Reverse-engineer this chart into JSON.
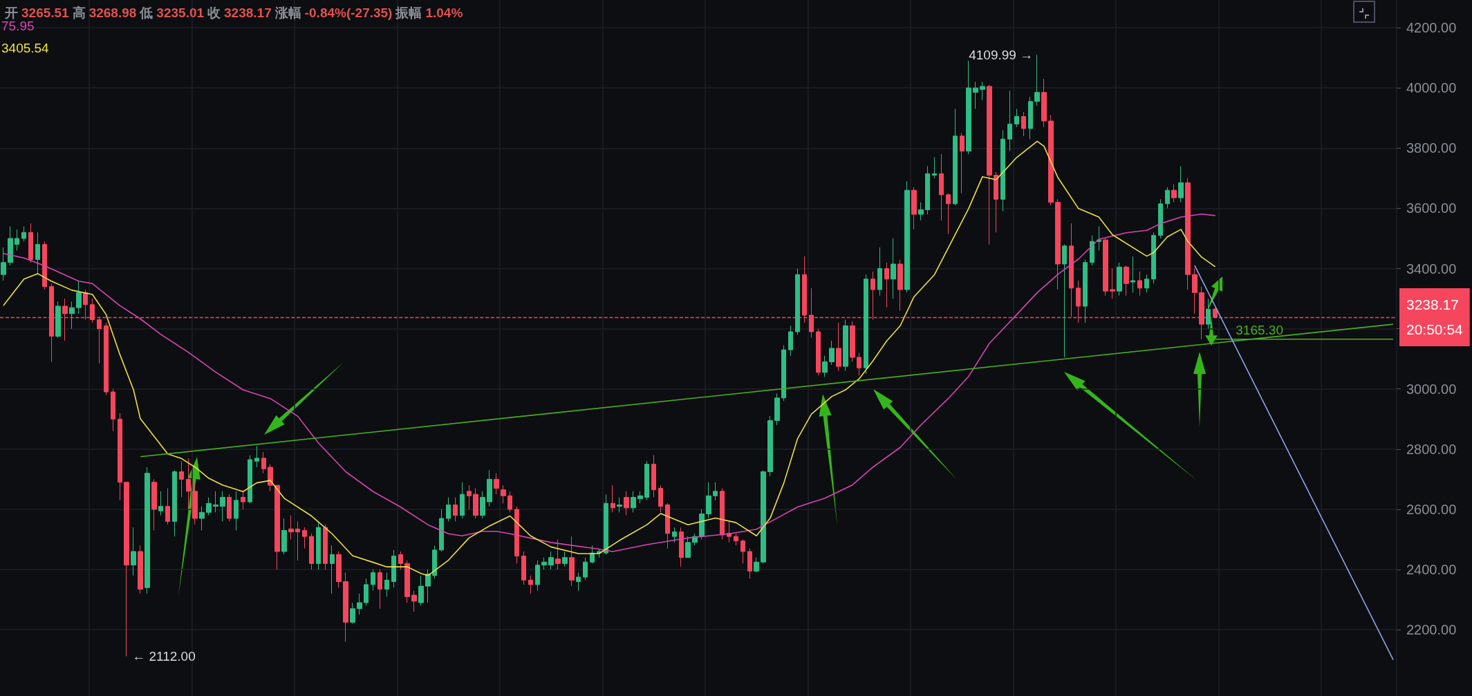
{
  "chart_data": {
    "type": "candlestick",
    "title": "开 3265.51 高 3268.98 低 3235.01 收 3238.17 涨幅 -0.84%(-27.35) 振幅 1.04%",
    "categories": [
      null,
      null,
      null,
      null,
      null,
      null,
      null,
      null,
      null,
      null,
      null,
      null,
      null,
      null,
      null,
      null,
      null,
      null,
      null,
      null,
      null,
      null,
      null,
      null,
      null,
      null,
      null,
      null,
      null,
      null,
      null,
      null,
      null,
      null,
      null,
      null,
      null,
      null,
      null,
      null,
      null,
      null,
      null,
      null,
      null,
      null,
      null,
      null,
      null,
      null,
      null,
      null,
      null,
      null,
      null,
      null,
      null,
      null,
      null,
      null,
      null,
      null,
      null,
      null,
      null,
      null,
      null,
      null,
      null,
      null,
      null,
      null,
      null,
      null,
      null,
      null,
      null,
      null,
      null,
      null,
      null,
      null,
      null,
      null,
      null,
      null,
      null,
      null,
      null,
      null,
      null,
      null,
      null,
      null,
      null,
      null,
      null,
      null,
      null,
      null,
      null,
      null,
      null,
      null,
      null,
      null,
      null,
      null,
      null,
      null,
      null,
      null,
      null,
      null,
      null,
      null,
      null,
      null,
      null,
      null,
      null,
      null,
      null,
      null,
      null,
      null,
      null,
      null,
      null,
      null,
      null,
      null,
      null,
      null,
      null,
      null,
      null,
      null,
      null,
      null,
      null,
      null,
      null,
      null,
      null,
      null,
      null,
      null,
      null,
      null,
      null,
      null,
      null,
      null,
      null,
      null,
      null,
      null,
      null,
      null,
      null,
      null,
      null,
      null,
      null,
      null,
      null,
      null,
      null,
      null,
      null,
      null,
      null,
      null,
      null,
      null,
      null,
      null,
      null,
      null,
      null,
      null,
      null,
      null,
      null,
      null,
      null,
      null,
      null,
      null,
      null,
      null,
      null,
      null,
      null,
      null,
      null,
      null,
      null,
      null,
      null,
      null,
      null,
      null
    ],
    "colors": [
      "#2ebd85",
      "#2ebd85",
      "#2ebd85",
      "#2ebd85",
      "#f6465d",
      "#2ebd85",
      "#f6465d",
      "#f6465d",
      "#2ebd85",
      "#f6465d",
      "#2ebd85",
      "#2ebd85",
      "#f6465d",
      "#f6465d",
      "#f6465d",
      "#f6465d",
      "#f6465d",
      "#f6465d",
      "#f6465d",
      "#2ebd85",
      "#f6465d",
      "#2ebd85",
      "#f6465d",
      "#2ebd85",
      "#f6465d",
      "#2ebd85",
      "#f6465d",
      "#f6465d",
      "#f6465d",
      "#2ebd85",
      "#2ebd85",
      "#2ebd85",
      "#2ebd85",
      "#f6465d",
      "#2ebd85",
      "#f6465d",
      "#2ebd85",
      "#2ebd85",
      "#f6465d",
      "#f6465d",
      "#f6465d",
      "#2ebd85",
      "#f6465d",
      "#f6465d",
      "#f6465d",
      "#f6465d",
      "#2ebd85",
      "#f6465d",
      "#2ebd85",
      "#f6465d",
      "#f6465d",
      "#2ebd85",
      "#2ebd85",
      "#2ebd85",
      "#2ebd85",
      "#f6465d",
      "#2ebd85",
      "#2ebd85",
      "#f6465d",
      "#f6465d",
      "#f6465d",
      "#2ebd85",
      "#2ebd85",
      "#2ebd85",
      "#2ebd85",
      "#2ebd85",
      "#f6465d",
      "#2ebd85",
      "#f6465d",
      "#f6465d",
      "#2ebd85",
      "#2ebd85",
      "#f6465d",
      "#f6465d",
      "#f6465d",
      "#f6465d",
      "#f6465d",
      "#f6465d",
      "#2ebd85",
      "#2ebd85",
      "#2ebd85",
      "#f6465d",
      "#2ebd85",
      "#f6465d",
      "#2ebd85",
      "#2ebd85",
      "#2ebd85",
      "#2ebd85",
      "#2ebd85",
      "#f6465d",
      "#2ebd85",
      "#f6465d",
      "#2ebd85",
      "#2ebd85",
      "#2ebd85",
      "#f6465d",
      "#f6465d",
      "#f6465d",
      "#2ebd85",
      "#f6465d",
      "#2ebd85",
      "#2ebd85",
      "#2ebd85",
      "#2ebd85",
      "#2ebd85",
      "#f6465d",
      "#f6465d",
      "#f6465d",
      "#f6465d",
      "#f6465d",
      "#2ebd85",
      "#2ebd85",
      "#2ebd85",
      "#2ebd85",
      "#2ebd85",
      "#2ebd85",
      "#2ebd85",
      "#f6465d",
      "#f6465d",
      "#f6465d",
      "#2ebd85",
      "#2ebd85",
      "#f6465d",
      "#2ebd85",
      "#f6465d",
      "#f6465d",
      "#2ebd85",
      "#f6465d",
      "#2ebd85",
      "#f6465d",
      "#2ebd85",
      "#f6465d",
      "#2ebd85",
      "#f6465d",
      "#2ebd85",
      "#2ebd85",
      "#2ebd85",
      "#f6465d",
      "#f6465d",
      "#2ebd85",
      "#f6465d",
      "#2ebd85",
      "#2ebd85",
      "#2ebd85",
      "#f6465d",
      "#f6465d",
      "#2ebd85",
      "#2ebd85",
      "#2ebd85",
      "#f6465d",
      "#2ebd85",
      "#2ebd85",
      "#f6465d",
      "#f6465d",
      "#f6465d",
      "#2ebd85",
      "#f6465d",
      "#f6465d",
      "#2ebd85",
      "#2ebd85",
      "#2ebd85",
      "#f6465d",
      "#f6465d",
      "#2ebd85",
      "#f6465d",
      "#2ebd85",
      "#f6465d",
      "#2ebd85",
      "#2ebd85",
      "#2ebd85",
      "#2ebd85",
      "#f6465d",
      "#2ebd85",
      "#f6465d",
      "#f6465d",
      "#f6465d",
      "#2ebd85",
      "#f6465d",
      null,
      null,
      null,
      null,
      null,
      null,
      null,
      null,
      null,
      null,
      null,
      null,
      null,
      null,
      null,
      null,
      null,
      null,
      null,
      null,
      null,
      null,
      null,
      null,
      null,
      null
    ],
    "ohlc": [
      [
        3380,
        3470,
        3360,
        3420
      ],
      [
        3420,
        3540,
        3410,
        3500
      ],
      [
        3480,
        3530,
        3460,
        3500
      ],
      [
        3500,
        3540,
        3490,
        3520
      ],
      [
        3520,
        3550,
        3420,
        3430
      ],
      [
        3430,
        3520,
        3380,
        3480
      ],
      [
        3480,
        3490,
        3330,
        3340
      ],
      [
        3340,
        3350,
        3090,
        3175
      ],
      [
        3175,
        3290,
        3170,
        3275
      ],
      [
        3275,
        3300,
        3160,
        3250
      ],
      [
        3250,
        3290,
        3200,
        3270
      ],
      [
        3270,
        3360,
        3250,
        3320
      ],
      [
        3320,
        3330,
        3230,
        3280
      ],
      [
        3280,
        3300,
        3220,
        3230
      ],
      [
        3230,
        3240,
        3085,
        3200
      ],
      [
        3210,
        3220,
        2980,
        2990
      ],
      [
        2990,
        3000,
        2860,
        2900
      ],
      [
        2900,
        2920,
        2630,
        2690
      ],
      [
        2690,
        2690,
        2112,
        2415
      ],
      [
        2415,
        2540,
        2380,
        2460
      ],
      [
        2460,
        2480,
        2320,
        2335
      ],
      [
        2340,
        2740,
        2320,
        2720
      ],
      [
        2690,
        2700,
        2530,
        2600
      ],
      [
        2595,
        2660,
        2580,
        2610
      ],
      [
        2610,
        2670,
        2550,
        2560
      ],
      [
        2560,
        2730,
        2510,
        2725
      ],
      [
        2725,
        2760,
        2640,
        2700
      ],
      [
        2700,
        2770,
        2600,
        2660
      ],
      [
        2660,
        2690,
        2550,
        2570
      ],
      [
        2570,
        2610,
        2530,
        2590
      ],
      [
        2590,
        2640,
        2580,
        2620
      ],
      [
        2610,
        2660,
        2590,
        2615
      ],
      [
        2610,
        2660,
        2560,
        2640
      ],
      [
        2640,
        2650,
        2560,
        2570
      ],
      [
        2570,
        2660,
        2530,
        2630
      ],
      [
        2640,
        2660,
        2600,
        2625
      ],
      [
        2625,
        2780,
        2620,
        2765
      ],
      [
        2760,
        2810,
        2740,
        2770
      ],
      [
        2770,
        2790,
        2720,
        2735
      ],
      [
        2740,
        2750,
        2660,
        2680
      ],
      [
        2680,
        2680,
        2400,
        2460
      ],
      [
        2460,
        2570,
        2450,
        2530
      ],
      [
        2535,
        2580,
        2500,
        2525
      ],
      [
        2535,
        2560,
        2430,
        2525
      ],
      [
        2530,
        2540,
        2470,
        2510
      ],
      [
        2510,
        2520,
        2400,
        2420
      ],
      [
        2420,
        2560,
        2400,
        2540
      ],
      [
        2540,
        2550,
        2400,
        2420
      ],
      [
        2420,
        2480,
        2320,
        2450
      ],
      [
        2450,
        2460,
        2340,
        2360
      ],
      [
        2360,
        2390,
        2160,
        2225
      ],
      [
        2225,
        2290,
        2220,
        2270
      ],
      [
        2270,
        2320,
        2250,
        2290
      ],
      [
        2290,
        2370,
        2280,
        2350
      ],
      [
        2350,
        2400,
        2330,
        2390
      ],
      [
        2390,
        2400,
        2270,
        2335
      ],
      [
        2335,
        2390,
        2310,
        2365
      ],
      [
        2360,
        2465,
        2340,
        2445
      ],
      [
        2450,
        2460,
        2400,
        2420
      ],
      [
        2420,
        2430,
        2290,
        2310
      ],
      [
        2315,
        2330,
        2260,
        2295
      ],
      [
        2290,
        2380,
        2280,
        2345
      ],
      [
        2345,
        2400,
        2290,
        2385
      ],
      [
        2380,
        2480,
        2370,
        2465
      ],
      [
        2465,
        2600,
        2460,
        2570
      ],
      [
        2570,
        2640,
        2560,
        2615
      ],
      [
        2615,
        2640,
        2560,
        2580
      ],
      [
        2580,
        2690,
        2570,
        2650
      ],
      [
        2660,
        2680,
        2600,
        2645
      ],
      [
        2650,
        2670,
        2570,
        2580
      ],
      [
        2580,
        2660,
        2570,
        2640
      ],
      [
        2625,
        2730,
        2610,
        2700
      ],
      [
        2700,
        2720,
        2650,
        2670
      ],
      [
        2665,
        2680,
        2620,
        2645
      ],
      [
        2645,
        2660,
        2590,
        2600
      ],
      [
        2600,
        2610,
        2420,
        2445
      ],
      [
        2445,
        2460,
        2350,
        2365
      ],
      [
        2365,
        2380,
        2320,
        2350
      ],
      [
        2350,
        2430,
        2330,
        2415
      ],
      [
        2415,
        2440,
        2400,
        2425
      ],
      [
        2415,
        2460,
        2400,
        2440
      ],
      [
        2435,
        2500,
        2400,
        2420
      ],
      [
        2420,
        2460,
        2410,
        2440
      ],
      [
        2440,
        2510,
        2345,
        2365
      ],
      [
        2360,
        2390,
        2330,
        2375
      ],
      [
        2375,
        2440,
        2365,
        2425
      ],
      [
        2425,
        2480,
        2420,
        2455
      ],
      [
        2455,
        2470,
        2440,
        2460
      ],
      [
        2455,
        2650,
        2450,
        2620
      ],
      [
        2620,
        2680,
        2590,
        2605
      ],
      [
        2610,
        2640,
        2590,
        2615
      ],
      [
        2640,
        2660,
        2580,
        2605
      ],
      [
        2605,
        2660,
        2590,
        2640
      ],
      [
        2635,
        2660,
        2620,
        2645
      ],
      [
        2640,
        2760,
        2630,
        2750
      ],
      [
        2750,
        2780,
        2640,
        2665
      ],
      [
        2670,
        2680,
        2590,
        2610
      ],
      [
        2615,
        2620,
        2470,
        2520
      ],
      [
        2510,
        2540,
        2490,
        2525
      ],
      [
        2525,
        2540,
        2410,
        2440
      ],
      [
        2440,
        2510,
        2440,
        2490
      ],
      [
        2490,
        2520,
        2480,
        2510
      ],
      [
        2510,
        2600,
        2500,
        2585
      ],
      [
        2585,
        2690,
        2570,
        2645
      ],
      [
        2645,
        2690,
        2630,
        2660
      ],
      [
        2660,
        2670,
        2500,
        2515
      ],
      [
        2520,
        2560,
        2490,
        2510
      ],
      [
        2510,
        2520,
        2480,
        2495
      ],
      [
        2495,
        2500,
        2420,
        2460
      ],
      [
        2460,
        2470,
        2370,
        2395
      ],
      [
        2395,
        2440,
        2390,
        2425
      ],
      [
        2425,
        2730,
        2420,
        2725
      ],
      [
        2725,
        2910,
        2710,
        2895
      ],
      [
        2895,
        2985,
        2880,
        2970
      ],
      [
        2970,
        3145,
        2960,
        3130
      ],
      [
        3130,
        3210,
        3110,
        3190
      ],
      [
        3190,
        3400,
        3180,
        3380
      ],
      [
        3380,
        3440,
        3220,
        3245
      ],
      [
        3245,
        3335,
        3170,
        3190
      ],
      [
        3190,
        3200,
        3045,
        3055
      ],
      [
        3055,
        3110,
        3040,
        3090
      ],
      [
        3090,
        3160,
        3080,
        3135
      ],
      [
        3135,
        3220,
        3060,
        3075
      ],
      [
        3075,
        3230,
        3060,
        3210
      ],
      [
        3210,
        3225,
        3090,
        3105
      ],
      [
        3105,
        3120,
        3045,
        3070
      ],
      [
        3070,
        3380,
        3050,
        3365
      ],
      [
        3365,
        3390,
        3230,
        3330
      ],
      [
        3330,
        3470,
        3310,
        3400
      ],
      [
        3400,
        3420,
        3270,
        3365
      ],
      [
        3365,
        3500,
        3300,
        3415
      ],
      [
        3415,
        3430,
        3260,
        3330
      ],
      [
        3330,
        3690,
        3320,
        3660
      ],
      [
        3660,
        3670,
        3530,
        3580
      ],
      [
        3580,
        3620,
        3560,
        3595
      ],
      [
        3595,
        3740,
        3580,
        3715
      ],
      [
        3710,
        3770,
        3700,
        3715
      ],
      [
        3715,
        3780,
        3560,
        3645
      ],
      [
        3645,
        3650,
        3515,
        3615
      ],
      [
        3615,
        3930,
        3610,
        3840
      ],
      [
        3840,
        3850,
        3650,
        3790
      ],
      [
        3790,
        4090,
        3780,
        4000
      ],
      [
        3985,
        4020,
        3930,
        4000
      ],
      [
        3995,
        4020,
        3960,
        4005
      ],
      [
        4005,
        4010,
        3480,
        3710
      ],
      [
        3710,
        3720,
        3520,
        3630
      ],
      [
        3630,
        3860,
        3590,
        3830
      ],
      [
        3830,
        3990,
        3790,
        3880
      ],
      [
        3880,
        3930,
        3870,
        3905
      ],
      [
        3905,
        3920,
        3840,
        3865
      ],
      [
        3865,
        3970,
        3830,
        3955
      ],
      [
        3955,
        4109.99,
        3940,
        3985
      ],
      [
        3985,
        4030,
        3870,
        3890
      ],
      [
        3890,
        3910,
        3610,
        3620
      ],
      [
        3620,
        3630,
        3330,
        3415
      ],
      [
        3415,
        3480,
        3105,
        3475
      ],
      [
        3475,
        3550,
        3240,
        3335
      ],
      [
        3335,
        3360,
        3220,
        3275
      ],
      [
        3275,
        3430,
        3220,
        3420
      ],
      [
        3420,
        3510,
        3410,
        3490
      ],
      [
        3490,
        3540,
        3460,
        3495
      ],
      [
        3495,
        3500,
        3310,
        3325
      ],
      [
        3330,
        3400,
        3300,
        3325
      ],
      [
        3325,
        3420,
        3310,
        3405
      ],
      [
        3405,
        3410,
        3310,
        3350
      ],
      [
        3355,
        3440,
        3320,
        3360
      ],
      [
        3360,
        3390,
        3310,
        3335
      ],
      [
        3335,
        3380,
        3320,
        3365
      ],
      [
        3365,
        3520,
        3350,
        3510
      ],
      [
        3510,
        3630,
        3500,
        3615
      ],
      [
        3615,
        3670,
        3600,
        3660
      ],
      [
        3660,
        3680,
        3620,
        3635
      ],
      [
        3635,
        3740,
        3620,
        3685
      ],
      [
        3685,
        3700,
        3330,
        3380
      ],
      [
        3380,
        3400,
        3250,
        3320
      ],
      [
        3320,
        3340,
        3165,
        3215
      ],
      [
        3215,
        3300,
        3200,
        3265
      ],
      [
        3265.51,
        3268.98,
        3235.01,
        3238.17
      ],
      null,
      null,
      null,
      null,
      null,
      null,
      null,
      null,
      null,
      null,
      null,
      null,
      null,
      null,
      null,
      null,
      null,
      null,
      null,
      null,
      null,
      null,
      null,
      null,
      null,
      null
    ],
    "series": [
      {
        "type": "line",
        "color": "#d946b5",
        "values": [
          3450,
          null,
          null,
          3435,
          null,
          null,
          3409,
          null,
          null,
          null,
          null,
          3358,
          null,
          3350,
          null,
          null,
          null,
          3277,
          null,
          null,
          3233,
          null,
          null,
          3181,
          null,
          null,
          null,
          3122,
          null,
          null,
          null,
          3056,
          null,
          null,
          null,
          2997,
          null,
          null,
          null,
          2968,
          null,
          null,
          null,
          2909,
          null,
          null,
          2821,
          null,
          null,
          null,
          2725,
          null,
          null,
          null,
          2659,
          null,
          null,
          null,
          2608,
          null,
          null,
          null,
          2549,
          null,
          null,
          2519,
          null,
          2512,
          null,
          null,
          2527,
          null,
          2527,
          null,
          2519,
          null,
          null,
          null,
          null,
          null,
          2490,
          null,
          null,
          null,
          null,
          null,
          null,
          2468,
          null,
          2460,
          null,
          null,
          null,
          null,
          2483,
          null,
          null,
          null,
          null,
          null,
          2505,
          null,
          null,
          null,
          null,
          null,
          2519,
          null,
          null,
          null,
          2534,
          null,
          null,
          2571,
          null,
          null,
          2608,
          null,
          null,
          null,
          2637,
          null,
          null,
          null,
          2681,
          null,
          null,
          2740,
          null,
          null,
          null,
          2806,
          null,
          null,
          2880,
          null,
          null,
          null,
          2968,
          null,
          null,
          3042,
          null,
          null,
          3151,
          null,
          null,
          null,
          3247,
          null,
          null,
          3320,
          null,
          null,
          3380,
          null,
          null,
          3431,
          null,
          null,
          3497,
          null,
          null,
          null,
          3519,
          null,
          null,
          3527,
          null,
          3549,
          null,
          null,
          3571,
          null,
          null,
          3581,
          null,
          3576,
          null,
          null,
          null,
          null,
          null,
          null,
          null,
          null,
          null,
          null,
          null,
          null,
          null,
          null,
          null,
          null,
          null,
          null,
          null,
          null,
          null,
          null,
          null,
          null,
          null,
          null
        ]
      },
      {
        "type": "line",
        "color": "#f0e040",
        "values": [
          3277,
          null,
          null,
          3365,
          null,
          3383,
          null,
          3358,
          null,
          null,
          3328,
          null,
          null,
          3314,
          null,
          3247,
          null,
          3115,
          null,
          2997,
          2901,
          2872,
          null,
          null,
          2784,
          null,
          2769,
          null,
          2740,
          null,
          2703,
          null,
          2681,
          null,
          null,
          2659,
          null,
          2688,
          null,
          2696,
          null,
          2637,
          null,
          null,
          null,
          2578,
          null,
          null,
          2519,
          null,
          null,
          2446,
          null,
          null,
          2424,
          null,
          2409,
          null,
          null,
          2409,
          null,
          2387,
          2380,
          null,
          null,
          2431,
          null,
          null,
          2505,
          null,
          null,
          2545,
          null,
          null,
          2578,
          null,
          null,
          2512,
          null,
          null,
          2475,
          null,
          null,
          null,
          2453,
          null,
          null,
          2453,
          null,
          null,
          2497,
          null,
          null,
          null,
          2549,
          null,
          2586,
          null,
          null,
          null,
          2549,
          null,
          null,
          null,
          2571,
          null,
          null,
          2556,
          null,
          null,
          2512,
          null,
          2571,
          null,
          2688,
          null,
          2835,
          null,
          2916,
          null,
          null,
          2975,
          null,
          2997,
          null,
          3034,
          null,
          3093,
          null,
          3159,
          null,
          3210,
          null,
          3306,
          null,
          null,
          3380,
          null,
          3468,
          null,
          null,
          3600,
          null,
          3705,
          null,
          3695,
          null,
          null,
          3769,
          null,
          null,
          3823,
          3806,
          null,
          3703,
          null,
          null,
          3600,
          null,
          null,
          3571,
          null,
          3512,
          null,
          null,
          null,
          null,
          3441,
          3453,
          null,
          3505,
          null,
          3530,
          3490,
          null,
          3438,
          null,
          3406,
          null,
          null,
          null,
          null,
          null,
          null,
          null,
          null,
          null,
          null,
          null,
          null,
          null,
          null,
          null,
          null,
          null,
          null,
          null,
          null,
          null,
          null,
          null,
          null,
          null,
          null
        ]
      },
      {
        "type": "line",
        "color": "#4caf1e",
        "values": [
          null,
          null,
          null,
          null,
          null,
          null,
          null,
          null,
          null,
          null,
          null,
          null,
          null,
          null,
          null,
          null,
          null,
          null,
          null,
          null,
          2775,
          null,
          null,
          null,
          null,
          null,
          null,
          null,
          null,
          null,
          null,
          null,
          null,
          null,
          null,
          null,
          null,
          null,
          null,
          null,
          null,
          null,
          null,
          null,
          null,
          null,
          null,
          null,
          null,
          null,
          null,
          null,
          null,
          null,
          null,
          null,
          null,
          null,
          null,
          null,
          null,
          null,
          null,
          null,
          null,
          null,
          null,
          null,
          null,
          null,
          null,
          null,
          null,
          null,
          null,
          null,
          null,
          null,
          null,
          null,
          null,
          null,
          null,
          null,
          null,
          null,
          null,
          null,
          null,
          null,
          null,
          null,
          null,
          null,
          null,
          null,
          null,
          null,
          null,
          null,
          null,
          null,
          null,
          null,
          null,
          null,
          null,
          null,
          null,
          null,
          null,
          null,
          null,
          null,
          null,
          null,
          null,
          null,
          null,
          null,
          null,
          null,
          null,
          null,
          null,
          null,
          null,
          null,
          null,
          null,
          null,
          null,
          null,
          null,
          null,
          null,
          null,
          null,
          null,
          null,
          null,
          null,
          null,
          null,
          null,
          null,
          null,
          null,
          null,
          null,
          null,
          null,
          null,
          null,
          null,
          null,
          null,
          null,
          null,
          null,
          null,
          null,
          null,
          null,
          null,
          null,
          null,
          null,
          null,
          null,
          null,
          null,
          null,
          null,
          null,
          null,
          null,
          null,
          null,
          null,
          null,
          null,
          null,
          null,
          null,
          null,
          null,
          null,
          null,
          null,
          null,
          null,
          null,
          null,
          null,
          null,
          null,
          null,
          null,
          null,
          null,
          null,
          null,
          3215
        ]
      },
      {
        "type": "line",
        "color": "#4caf1e",
        "values": [
          null,
          null,
          null,
          null,
          null,
          null,
          null,
          null,
          null,
          null,
          null,
          null,
          null,
          null,
          null,
          null,
          null,
          null,
          null,
          null,
          null,
          null,
          null,
          null,
          null,
          null,
          null,
          null,
          null,
          null,
          null,
          null,
          null,
          null,
          null,
          null,
          null,
          null,
          null,
          null,
          null,
          null,
          null,
          null,
          null,
          null,
          null,
          null,
          null,
          null,
          null,
          null,
          null,
          null,
          null,
          null,
          null,
          null,
          null,
          null,
          null,
          null,
          null,
          null,
          null,
          null,
          null,
          null,
          null,
          null,
          null,
          null,
          null,
          null,
          null,
          null,
          null,
          null,
          null,
          null,
          null,
          null,
          null,
          null,
          null,
          null,
          null,
          null,
          null,
          null,
          null,
          null,
          null,
          null,
          null,
          null,
          null,
          null,
          null,
          null,
          null,
          null,
          null,
          null,
          null,
          null,
          null,
          null,
          null,
          null,
          null,
          null,
          null,
          null,
          null,
          null,
          null,
          null,
          null,
          null,
          null,
          null,
          null,
          null,
          null,
          null,
          null,
          null,
          null,
          null,
          null,
          null,
          null,
          null,
          null,
          null,
          null,
          null,
          null,
          null,
          null,
          null,
          null,
          null,
          null,
          null,
          null,
          null,
          null,
          null,
          null,
          null,
          null,
          null,
          null,
          null,
          null,
          null,
          null,
          null,
          null,
          null,
          null,
          null,
          null,
          null,
          null,
          null,
          null,
          null,
          null,
          null,
          null,
          null,
          null,
          null,
          null,
          3165.3,
          null,
          null,
          null,
          null,
          null,
          null,
          null,
          null,
          null,
          null,
          null,
          null,
          null,
          null,
          null,
          null,
          null,
          null,
          null,
          null,
          null,
          null,
          null,
          null,
          null,
          3165.3
        ]
      },
      {
        "type": "line",
        "color": "#8fa3ea",
        "values": [
          null,
          null,
          null,
          null,
          null,
          null,
          null,
          null,
          null,
          null,
          null,
          null,
          null,
          null,
          null,
          null,
          null,
          null,
          null,
          null,
          null,
          null,
          null,
          null,
          null,
          null,
          null,
          null,
          null,
          null,
          null,
          null,
          null,
          null,
          null,
          null,
          null,
          null,
          null,
          null,
          null,
          null,
          null,
          null,
          null,
          null,
          null,
          null,
          null,
          null,
          null,
          null,
          null,
          null,
          null,
          null,
          null,
          null,
          null,
          null,
          null,
          null,
          null,
          null,
          null,
          null,
          null,
          null,
          null,
          null,
          null,
          null,
          null,
          null,
          null,
          null,
          null,
          null,
          null,
          null,
          null,
          null,
          null,
          null,
          null,
          null,
          null,
          null,
          null,
          null,
          null,
          null,
          null,
          null,
          null,
          null,
          null,
          null,
          null,
          null,
          null,
          null,
          null,
          null,
          null,
          null,
          null,
          null,
          null,
          null,
          null,
          null,
          null,
          null,
          null,
          null,
          null,
          null,
          null,
          null,
          null,
          null,
          null,
          null,
          null,
          null,
          null,
          null,
          null,
          null,
          null,
          null,
          null,
          null,
          null,
          null,
          null,
          null,
          null,
          null,
          null,
          null,
          null,
          null,
          null,
          null,
          null,
          null,
          null,
          null,
          null,
          null,
          null,
          null,
          null,
          null,
          null,
          null,
          null,
          null,
          null,
          null,
          null,
          null,
          null,
          null,
          null,
          null,
          null,
          null,
          null,
          null,
          null,
          null,
          3410,
          null,
          null,
          null,
          null,
          null,
          null,
          null,
          null,
          null,
          null,
          null,
          null,
          null,
          null,
          null,
          null,
          null,
          null,
          null,
          null,
          null,
          null,
          null,
          null,
          null,
          null,
          null,
          null,
          2100
        ]
      }
    ],
    "ylim": [
      1980,
      4292
    ],
    "yticks": [
      {
        "value": 2200,
        "label": "2200.00"
      },
      {
        "value": 2400,
        "label": "2400.00"
      },
      {
        "value": 2600,
        "label": "2600.00"
      },
      {
        "value": 2800,
        "label": "2800.00"
      },
      {
        "value": 3000,
        "label": "3000.00"
      },
      {
        "value": 3200,
        "label": null
      },
      {
        "value": 3400,
        "label": "3400.00"
      },
      {
        "value": 3600,
        "label": "3600.00"
      },
      {
        "value": 3800,
        "label": "3800.00"
      },
      {
        "value": 4000,
        "label": "4000.00"
      },
      {
        "value": 4200,
        "label": "4200.00"
      }
    ],
    "ref_lines": [
      {
        "axis": "y",
        "value": 3238.17,
        "label": "3238.17\n20:50:54",
        "color": "#f6465d",
        "line_style": "dashed"
      }
    ],
    "annotations": [
      "75.95",
      "3405.54",
      "4109.99 →",
      "← 2112.00",
      {
        "text": "3165.30",
        "y": 3165.3
      }
    ],
    "grid": true,
    "tick_labels": "y",
    "marker": "none",
    "line_style": "solid"
  }
}
